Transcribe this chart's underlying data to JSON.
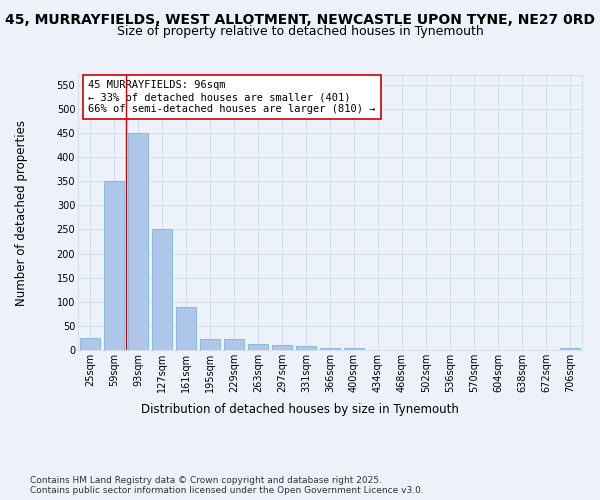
{
  "title_line1": "45, MURRAYFIELDS, WEST ALLOTMENT, NEWCASTLE UPON TYNE, NE27 0RD",
  "title_line2": "Size of property relative to detached houses in Tynemouth",
  "xlabel": "Distribution of detached houses by size in Tynemouth",
  "ylabel": "Number of detached properties",
  "categories": [
    "25sqm",
    "59sqm",
    "93sqm",
    "127sqm",
    "161sqm",
    "195sqm",
    "229sqm",
    "263sqm",
    "297sqm",
    "331sqm",
    "366sqm",
    "400sqm",
    "434sqm",
    "468sqm",
    "502sqm",
    "536sqm",
    "570sqm",
    "604sqm",
    "638sqm",
    "672sqm",
    "706sqm"
  ],
  "values": [
    25,
    350,
    450,
    250,
    90,
    22,
    22,
    12,
    10,
    8,
    5,
    5,
    0,
    0,
    0,
    0,
    0,
    0,
    0,
    0,
    5
  ],
  "bar_color": "#aec6e8",
  "bar_edge_color": "#6aaed6",
  "vline_x": 2,
  "vline_color": "#cc0000",
  "annotation_text": "45 MURRAYFIELDS: 96sqm\n← 33% of detached houses are smaller (401)\n66% of semi-detached houses are larger (810) →",
  "annotation_box_color": "#ffffff",
  "annotation_box_edge": "#cc0000",
  "ylim": [
    0,
    570
  ],
  "yticks": [
    0,
    50,
    100,
    150,
    200,
    250,
    300,
    350,
    400,
    450,
    500,
    550
  ],
  "background_color": "#edf2fa",
  "footer_text": "Contains HM Land Registry data © Crown copyright and database right 2025.\nContains public sector information licensed under the Open Government Licence v3.0.",
  "title_fontsize": 10,
  "subtitle_fontsize": 9,
  "axis_label_fontsize": 8.5,
  "tick_fontsize": 7,
  "annotation_fontsize": 7.5,
  "footer_fontsize": 6.5
}
